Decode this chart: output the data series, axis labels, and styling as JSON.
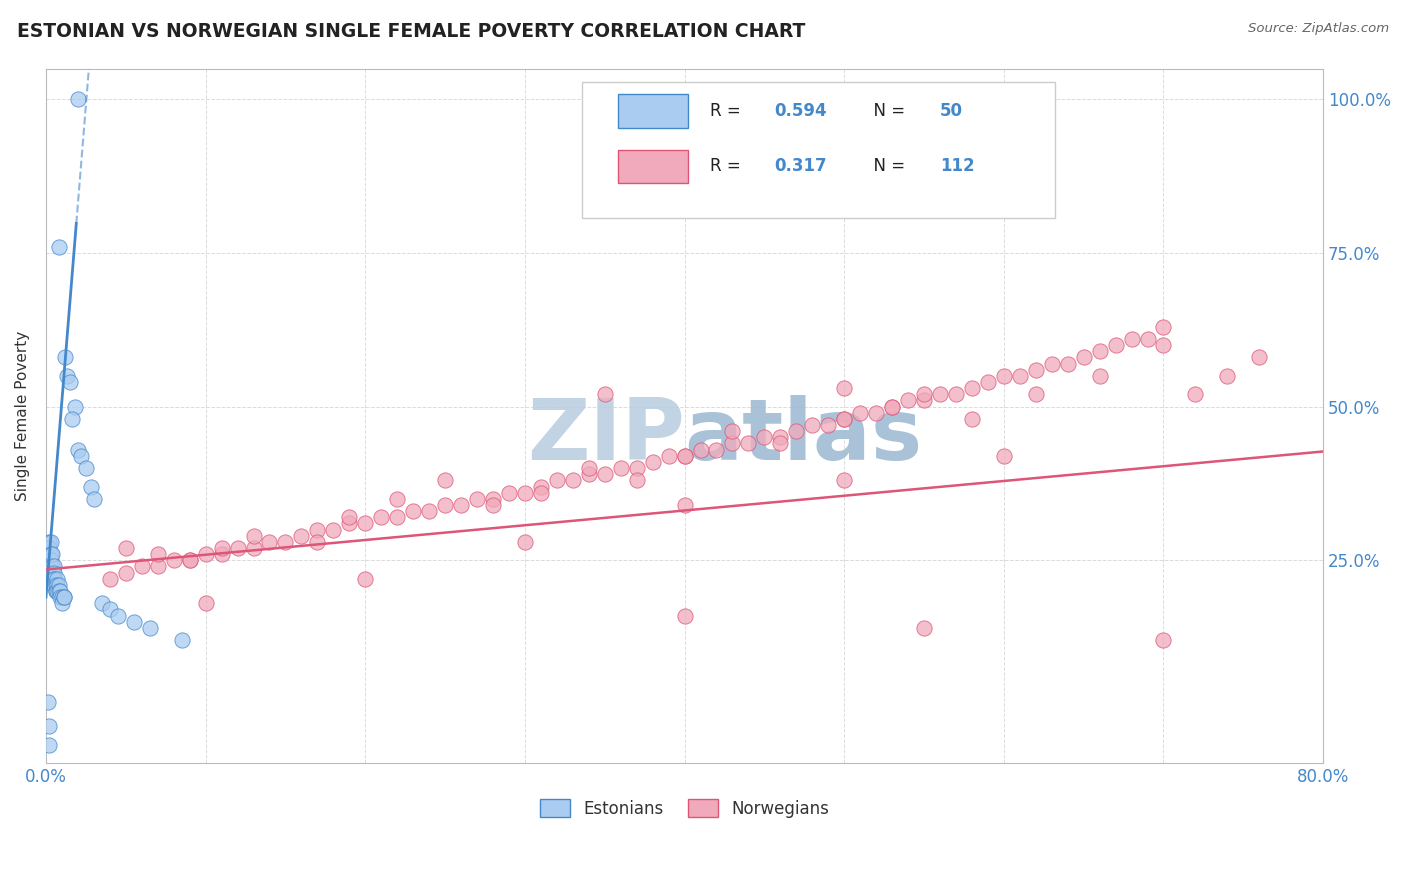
{
  "title": "ESTONIAN VS NORWEGIAN SINGLE FEMALE POVERTY CORRELATION CHART",
  "source": "Source: ZipAtlas.com",
  "ylabel": "Single Female Poverty",
  "right_yticks": [
    "25.0%",
    "50.0%",
    "75.0%",
    "100.0%"
  ],
  "right_ytick_vals": [
    0.25,
    0.5,
    0.75,
    1.0
  ],
  "legend_label1": "Estonians",
  "legend_label2": "Norwegians",
  "R_estonian": 0.594,
  "N_estonian": 50,
  "R_norwegian": 0.317,
  "N_norwegian": 112,
  "bg_color": "#ffffff",
  "plot_bg_color": "#ffffff",
  "estonian_color": "#aaccf0",
  "norwegian_color": "#f0aabb",
  "estonian_line_color": "#4488cc",
  "norwegian_line_color": "#dd5577",
  "grid_color": "#cccccc",
  "xlim": [
    0.0,
    0.8
  ],
  "ylim": [
    -0.08,
    1.05
  ],
  "legend_R_color": "#4488cc",
  "legend_N_color": "#4488cc",
  "title_color": "#222222",
  "source_color": "#666666"
}
